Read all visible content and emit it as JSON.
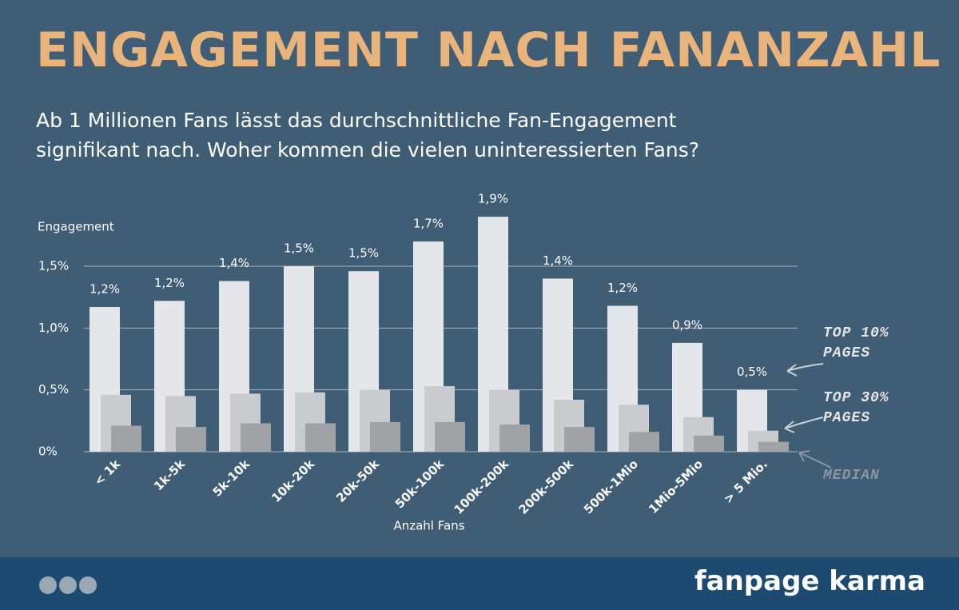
{
  "chart_data": {
    "type": "bar",
    "title": "ENGAGEMENT NACH FANANZAHL",
    "subtitle": "Ab 1 Millionen Fans lässt das durchschnittliche Fan-Engagement signifikant nach. Woher kommen die vielen uninteressierten Fans?",
    "y_label": "Engagement",
    "x_label": "Anzahl Fans",
    "categories": [
      "< 1k",
      "1k-5k",
      "5k-10k",
      "10k-20k",
      "20k-50k",
      "50k-100k",
      "100k-200k",
      "200k-500k",
      "500k-1Mio",
      "1Mio-5Mio",
      "> 5 Mio."
    ],
    "series": [
      {
        "name": "TOP 10% PAGES",
        "color": "#e4e6e9",
        "values": [
          1.17,
          1.22,
          1.38,
          1.5,
          1.46,
          1.7,
          1.9,
          1.4,
          1.18,
          0.88,
          0.5
        ],
        "value_labels": [
          "1,2%",
          "1,2%",
          "1,4%",
          "1,5%",
          "1,5%",
          "1,7%",
          "1,9%",
          "1,4%",
          "1,2%",
          "0,9%",
          "0,5%"
        ]
      },
      {
        "name": "TOP 30% PAGES",
        "color": "#c9cbce",
        "values": [
          0.46,
          0.45,
          0.47,
          0.48,
          0.5,
          0.53,
          0.5,
          0.42,
          0.38,
          0.28,
          0.17
        ]
      },
      {
        "name": "MEDIAN",
        "color": "#a0a2a5",
        "values": [
          0.21,
          0.2,
          0.23,
          0.23,
          0.24,
          0.24,
          0.22,
          0.2,
          0.16,
          0.13,
          0.08
        ]
      }
    ],
    "ylim": [
      0,
      1.5
    ],
    "yticks": [
      {
        "value": 0,
        "label": "0%"
      },
      {
        "value": 0.5,
        "label": "0,5%"
      },
      {
        "value": 1,
        "label": "1,0%"
      },
      {
        "value": 1.5,
        "label": "1,5%"
      }
    ],
    "grid": true
  },
  "footer": {
    "brand": "fanpage karma"
  }
}
